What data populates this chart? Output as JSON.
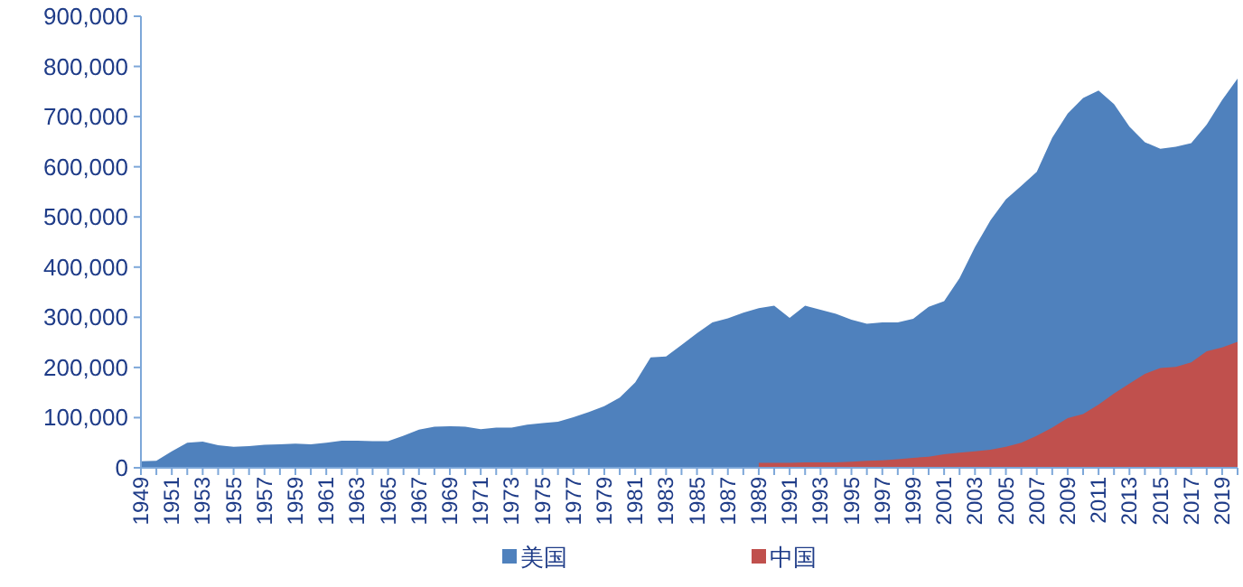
{
  "chart_data": {
    "type": "area",
    "categories": [
      "1949",
      null,
      "1951",
      null,
      "1953",
      null,
      "1955",
      null,
      "1957",
      null,
      "1959",
      null,
      "1961",
      null,
      "1963",
      null,
      "1965",
      null,
      "1967",
      null,
      "1969",
      null,
      "1971",
      null,
      "1973",
      null,
      "1975",
      null,
      "1977",
      null,
      "1979",
      null,
      "1981",
      null,
      "1983",
      null,
      "1985",
      null,
      "1987",
      null,
      "1989",
      null,
      "1991",
      null,
      "1993",
      null,
      "1995",
      null,
      "1997",
      null,
      "1999",
      null,
      "2001",
      null,
      "2003",
      null,
      "2005",
      null,
      "2007",
      null,
      "2009",
      null,
      "2011",
      null,
      "2013",
      null,
      "2015",
      null,
      "2017",
      null,
      "2019",
      null
    ],
    "series": [
      {
        "name": "美国",
        "color": "#4f81bd",
        "values": [
          13000,
          14000,
          33000,
          50000,
          52000,
          45000,
          42000,
          43000,
          46000,
          47000,
          48000,
          47000,
          50000,
          54000,
          54000,
          53000,
          53000,
          64000,
          76000,
          82000,
          83000,
          82000,
          77000,
          80000,
          80000,
          86000,
          89000,
          92000,
          101000,
          111000,
          123000,
          140000,
          170000,
          220000,
          222000,
          245000,
          268000,
          290000,
          298000,
          309000,
          318000,
          323000,
          299000,
          323000,
          315000,
          307000,
          295000,
          287000,
          290000,
          290000,
          297000,
          321000,
          332000,
          378000,
          440000,
          493000,
          535000,
          562000,
          590000,
          658000,
          706000,
          737000,
          752000,
          725000,
          680000,
          649000,
          636000,
          640000,
          647000,
          684000,
          733000,
          776000
        ]
      },
      {
        "name": "中国",
        "color": "#c0504d",
        "values": [
          null,
          null,
          null,
          null,
          null,
          null,
          null,
          null,
          null,
          null,
          null,
          null,
          null,
          null,
          null,
          null,
          null,
          null,
          null,
          null,
          null,
          null,
          null,
          null,
          null,
          null,
          null,
          null,
          null,
          null,
          null,
          null,
          null,
          null,
          null,
          null,
          null,
          null,
          null,
          null,
          10000,
          10000,
          10000,
          11000,
          11000,
          11000,
          12000,
          14000,
          15000,
          17000,
          20000,
          22000,
          27000,
          30000,
          33000,
          36000,
          42000,
          50000,
          64000,
          80000,
          99000,
          107000,
          126000,
          148000,
          168000,
          187000,
          199000,
          201000,
          210000,
          232000,
          240000,
          251000
        ]
      }
    ],
    "ylim": [
      0,
      900000
    ],
    "yticks": [
      {
        "value": 0,
        "label": "0"
      },
      {
        "value": 100000,
        "label": "100,000"
      },
      {
        "value": 200000,
        "label": "200,000"
      },
      {
        "value": 300000,
        "label": "300,000"
      },
      {
        "value": 400000,
        "label": "400,000"
      },
      {
        "value": 500000,
        "label": "500,000"
      },
      {
        "value": 600000,
        "label": "600,000"
      },
      {
        "value": 700000,
        "label": "700,000"
      },
      {
        "value": 800000,
        "label": "800,000"
      },
      {
        "value": 900000,
        "label": "900,000"
      }
    ],
    "legend": "bottom"
  }
}
